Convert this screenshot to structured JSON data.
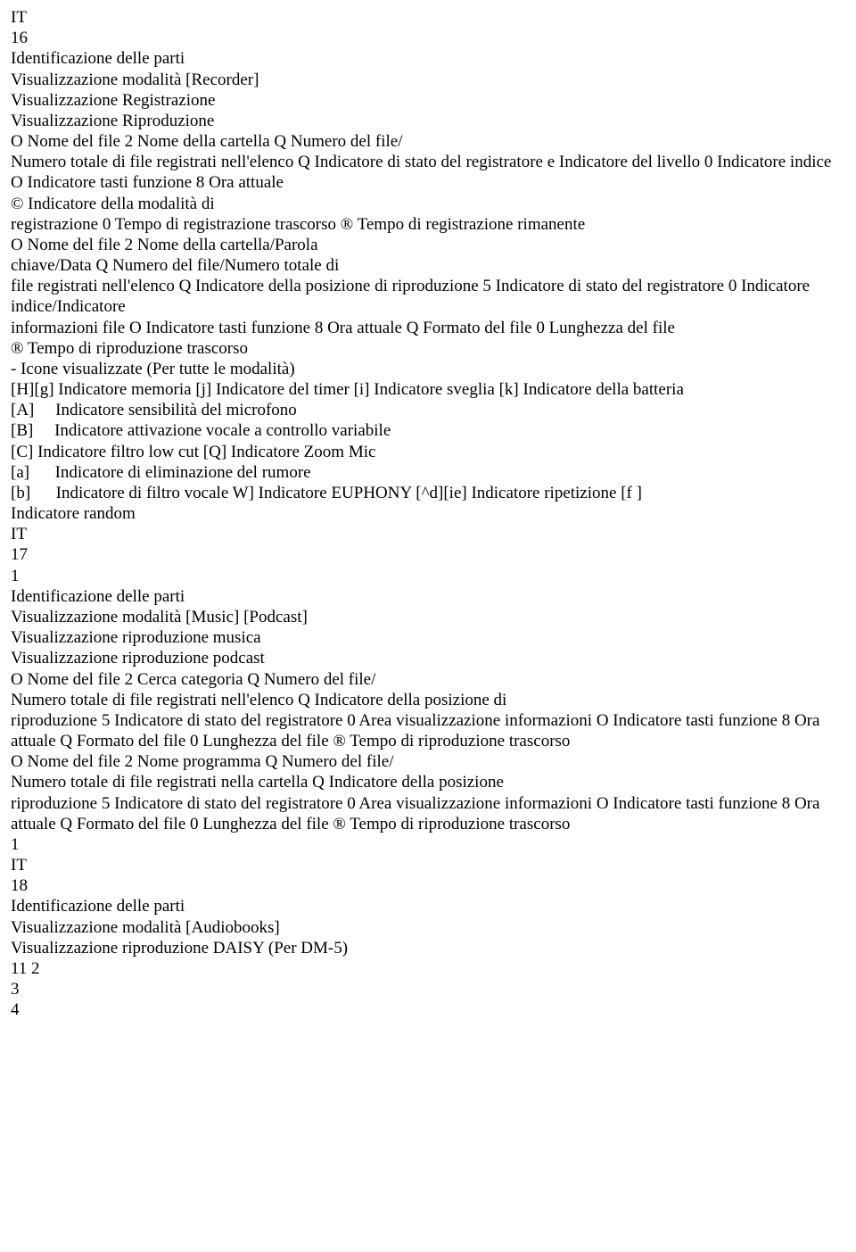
{
  "lines": [
    "IT",
    "16",
    "Identificazione delle parti",
    "Visualizzazione modalità [Recorder]",
    "Visualizzazione Registrazione",
    "Visualizzazione Riproduzione",
    "O Nome del file 2 Nome della cartella Q Numero del file/",
    "Numero totale di file registrati nell'elenco Q Indicatore di stato del registratore e Indicatore del livello 0 Indicatore indice O Indicatore tasti funzione 8 Ora attuale",
    "© Indicatore della modalità di",
    "registrazione 0 Tempo di registrazione trascorso ® Tempo di registrazione rimanente",
    "O Nome del file 2 Nome della cartella/Parola",
    "chiave/Data Q Numero del file/Numero totale di",
    "file registrati nell'elenco Q Indicatore della posizione di riproduzione 5 Indicatore di stato del registratore 0 Indicatore indice/Indicatore",
    "informazioni file O Indicatore tasti funzione 8 Ora attuale Q Formato del file 0 Lunghezza del file",
    "® Tempo di riproduzione trascorso",
    "- Icone visualizzate (Per tutte le modalità)",
    "[H][g] Indicatore memoria [j] Indicatore del timer [i] Indicatore sveglia [k] Indicatore della batteria",
    "[A]     Indicatore sensibilità del microfono",
    "[B]     Indicatore attivazione vocale a controllo variabile",
    "[C] Indicatore filtro low cut [Q] Indicatore Zoom Mic",
    "[a]      Indicatore di eliminazione del rumore",
    "[b]      Indicatore di filtro vocale W] Indicatore EUPHONY [^d][ie] Indicatore ripetizione [f ]",
    "Indicatore random",
    "IT",
    "17",
    "1",
    "Identificazione delle parti",
    "Visualizzazione modalità [Music] [Podcast]",
    "Visualizzazione riproduzione musica",
    "Visualizzazione riproduzione podcast",
    "O Nome del file 2 Cerca categoria Q Numero del file/",
    "Numero totale di file registrati nell'elenco Q Indicatore della posizione di",
    "riproduzione 5 Indicatore di stato del registratore 0 Area visualizzazione informazioni O Indicatore tasti funzione 8 Ora attuale Q Formato del file 0 Lunghezza del file ® Tempo di riproduzione trascorso",
    "O Nome del file 2 Nome programma Q Numero del file/",
    "Numero totale di file registrati nella cartella Q Indicatore della posizione",
    "riproduzione 5 Indicatore di stato del registratore 0 Area visualizzazione informazioni O Indicatore tasti funzione 8 Ora attuale Q Formato del file 0 Lunghezza del file ® Tempo di riproduzione trascorso",
    "1",
    "IT",
    "18",
    "Identificazione delle parti",
    "Visualizzazione modalità [Audiobooks]",
    "Visualizzazione riproduzione DAISY (Per DM-5)",
    "11 2",
    "3",
    "4"
  ]
}
